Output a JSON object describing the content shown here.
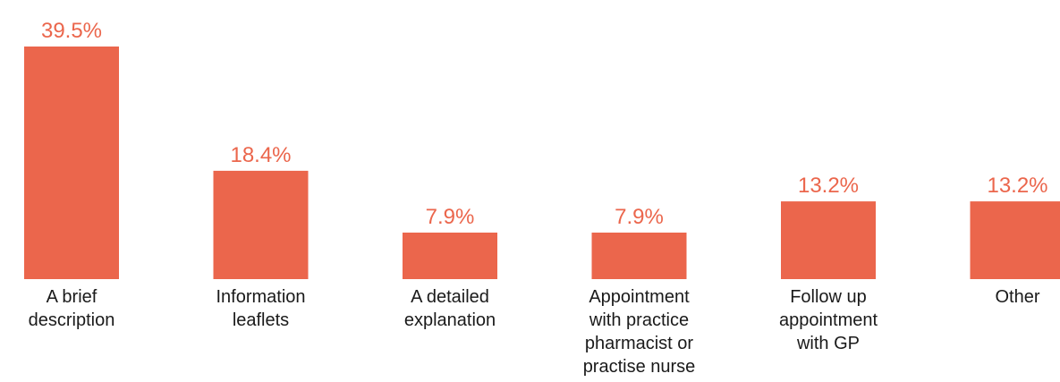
{
  "chart_data": {
    "type": "bar",
    "title": "",
    "xlabel": "",
    "ylabel": "",
    "categories": [
      [
        "A brief",
        "description"
      ],
      [
        "Information",
        "leaflets"
      ],
      [
        "A detailed",
        "explanation"
      ],
      [
        "Appointment",
        "with practice",
        "pharmacist or",
        "practise nurse"
      ],
      [
        "Follow up",
        "appointment",
        "with GP"
      ],
      [
        "Other"
      ]
    ],
    "values": [
      39.5,
      18.4,
      7.9,
      7.9,
      13.2,
      13.2
    ],
    "value_labels": [
      "39.5%",
      "18.4%",
      "7.9%",
      "7.9%",
      "13.2%",
      "13.2%"
    ],
    "ylim": [
      0,
      39.5
    ],
    "grid": false,
    "legend": "none",
    "colors": {
      "bar": "#EB664C",
      "value_label": "#EB664C",
      "category_label": "#1a1a1a"
    }
  }
}
